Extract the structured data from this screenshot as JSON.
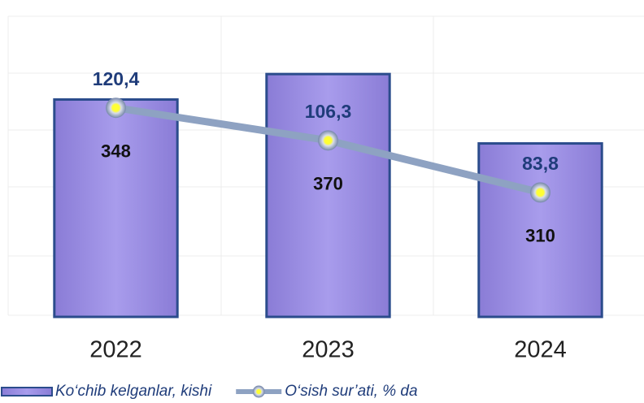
{
  "chart_data": {
    "type": "bar",
    "categories": [
      "2022",
      "2023",
      "2024"
    ],
    "series": [
      {
        "name": "Ko‘chib kelganlar, kishi",
        "type": "bar",
        "color": "#9d90e2",
        "values": [
          348,
          370,
          310
        ]
      },
      {
        "name": "O‘sish sur’ati, % da",
        "type": "line",
        "axis": "y2",
        "color": "#8ea2c2",
        "values": [
          120.4,
          106.3,
          83.8
        ],
        "value_labels": [
          "120,4",
          "106,3",
          "83,8"
        ]
      }
    ],
    "ylim": [
      160,
      420
    ],
    "y2lim": [
      30,
      160
    ],
    "legend": "bottom-left"
  }
}
